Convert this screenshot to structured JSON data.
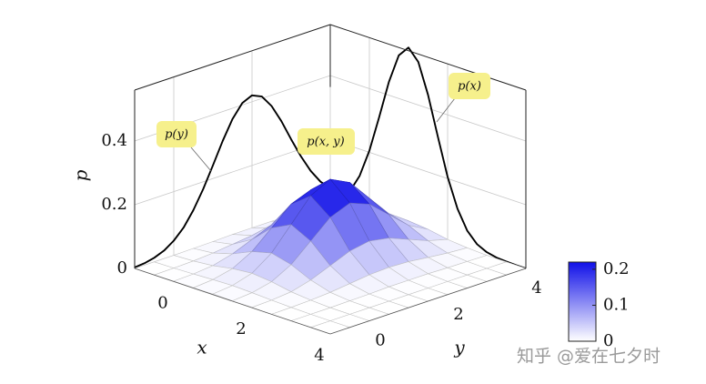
{
  "chart_data": {
    "type": "surface3d",
    "xlabel": "x",
    "ylabel": "y",
    "zlabel": "p",
    "xlim": [
      -1,
      4
    ],
    "ylim": [
      -1,
      4
    ],
    "zlim": [
      0,
      0.56
    ],
    "xticks": [
      0,
      2,
      4
    ],
    "yticks": [
      0,
      2,
      4
    ],
    "zticks": [
      0,
      0.2,
      0.4
    ],
    "grid": true,
    "colormap": [
      "#ffffff",
      "#1010e8"
    ],
    "clim": [
      0,
      0.22
    ],
    "cticks": [
      0,
      0.1,
      0.2
    ],
    "line_color": "#000000",
    "surface": {
      "x": [
        -1,
        -0.5,
        0,
        0.5,
        1,
        1.5,
        2,
        2.5,
        3,
        3.5,
        4
      ],
      "y": [
        -1,
        -0.5,
        0,
        0.5,
        1,
        1.5,
        2,
        2.5,
        3,
        3.5,
        4
      ],
      "z": [
        [
          0.0,
          0.0,
          0.0,
          0.001,
          0.002,
          0.004,
          0.004,
          0.004,
          0.002,
          0.001,
          0.0
        ],
        [
          0.0,
          0.001,
          0.003,
          0.007,
          0.014,
          0.021,
          0.024,
          0.021,
          0.014,
          0.007,
          0.003
        ],
        [
          0.001,
          0.003,
          0.009,
          0.025,
          0.05,
          0.075,
          0.086,
          0.075,
          0.05,
          0.025,
          0.009
        ],
        [
          0.001,
          0.006,
          0.02,
          0.053,
          0.107,
          0.161,
          0.185,
          0.161,
          0.107,
          0.053,
          0.02
        ],
        [
          0.002,
          0.008,
          0.026,
          0.069,
          0.138,
          0.208,
          0.239,
          0.208,
          0.138,
          0.069,
          0.026
        ],
        [
          0.001,
          0.006,
          0.02,
          0.053,
          0.107,
          0.161,
          0.185,
          0.161,
          0.107,
          0.053,
          0.02
        ],
        [
          0.001,
          0.003,
          0.009,
          0.025,
          0.05,
          0.075,
          0.086,
          0.075,
          0.05,
          0.025,
          0.009
        ],
        [
          0.0,
          0.001,
          0.003,
          0.007,
          0.014,
          0.021,
          0.024,
          0.021,
          0.014,
          0.007,
          0.003
        ],
        [
          0.0,
          0.0,
          0.0,
          0.001,
          0.002,
          0.004,
          0.004,
          0.004,
          0.002,
          0.001,
          0.0
        ],
        [
          0.0,
          0.0,
          0.0,
          0.0,
          0.0,
          0.0,
          0.0,
          0.0,
          0.0,
          0.0,
          0.0
        ],
        [
          0.0,
          0.0,
          0.0,
          0.0,
          0.0,
          0.0,
          0.0,
          0.0,
          0.0,
          0.0,
          0.0
        ]
      ]
    },
    "marginal_x": {
      "x": [
        -1,
        -0.75,
        -0.5,
        -0.25,
        0,
        0.25,
        0.5,
        0.75,
        1,
        1.25,
        1.5,
        1.75,
        2,
        2.25,
        2.5,
        2.75,
        3,
        3.25,
        3.5,
        3.75,
        4
      ],
      "values": [
        0.01,
        0.025,
        0.057,
        0.116,
        0.205,
        0.321,
        0.442,
        0.535,
        0.57,
        0.535,
        0.442,
        0.321,
        0.205,
        0.116,
        0.057,
        0.025,
        0.01,
        0.003,
        0.001,
        0.0,
        0.0
      ]
    },
    "marginal_y": {
      "y": [
        -1,
        -0.75,
        -0.5,
        -0.25,
        0,
        0.25,
        0.5,
        0.75,
        1,
        1.25,
        1.5,
        1.75,
        2,
        2.25,
        2.5,
        2.75,
        3,
        3.25,
        3.5,
        3.75,
        4
      ],
      "values": [
        0.003,
        0.006,
        0.013,
        0.025,
        0.046,
        0.077,
        0.121,
        0.177,
        0.241,
        0.308,
        0.366,
        0.406,
        0.42,
        0.406,
        0.366,
        0.308,
        0.241,
        0.177,
        0.121,
        0.077,
        0.046
      ]
    },
    "annotations": [
      "p(y)",
      "p(x, y)",
      "p(x)"
    ],
    "watermark": "知乎 @爱在七夕时"
  }
}
